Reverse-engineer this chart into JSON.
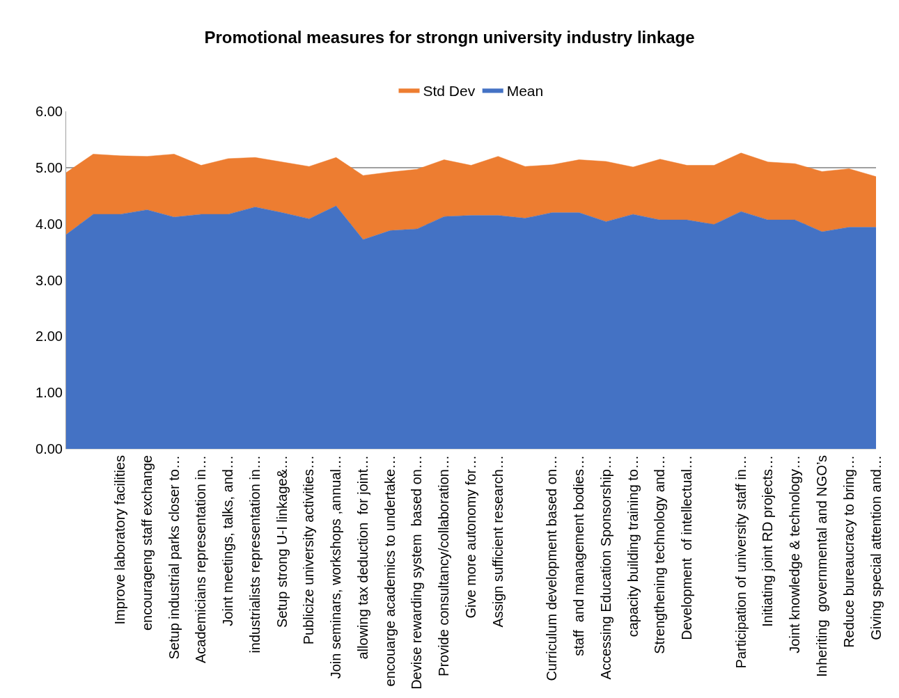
{
  "chart_data": {
    "type": "area",
    "title": "Promotional measures for strongn university industry linkage",
    "categories": [
      null,
      null,
      "Improve laboratory facilities",
      "encourageng staff exchange",
      "Setup industrial parks closer to…",
      "Academicians representation in…",
      "Joint meetings, talks, and…",
      "industrialists representation in…",
      "Setup strong U-I linkage&…",
      "Publicize university activities…",
      "Join seminars, workshops ,annual…",
      "allowing tax deduction  for joint…",
      "encouarge academics to undertake…",
      "Devise rewarding system  based on…",
      "Provide consultancy/collaboration…",
      "Give more autonomy for…",
      "Assign sufficient research…",
      null,
      "Curriculum development based on…",
      "staff  and management bodies…",
      "Accessing Education Sponsorship…",
      "capacity building training to…",
      "Strengthening technology and…",
      "Development  of intellectual…",
      null,
      "Participation of university staff in…",
      "Initiating joint RD projects…",
      "Joint knowledge & technology…",
      "Inheriting  governmental and NGO’s",
      "Reduce bureaucracy to bring…",
      "Giving special attention and…"
    ],
    "stacked": true,
    "series": [
      {
        "name": "Mean",
        "color": "#4472c4",
        "values": [
          3.81,
          4.17,
          4.17,
          4.25,
          4.12,
          4.17,
          4.17,
          4.3,
          4.2,
          4.09,
          4.32,
          3.72,
          3.88,
          3.91,
          4.13,
          4.15,
          4.15,
          4.1,
          4.2,
          4.2,
          4.04,
          4.17,
          4.07,
          4.07,
          3.99,
          4.22,
          4.07,
          4.07,
          3.86,
          3.94,
          3.94
        ]
      },
      {
        "name": "Std Dev",
        "color": "#ed7d31",
        "values": [
          1.1,
          1.07,
          1.04,
          0.95,
          1.12,
          0.87,
          0.99,
          0.88,
          0.9,
          0.93,
          0.86,
          1.14,
          1.04,
          1.06,
          1.01,
          0.89,
          1.05,
          0.92,
          0.85,
          0.94,
          1.07,
          0.84,
          1.08,
          0.97,
          1.05,
          1.04,
          1.03,
          1.0,
          1.07,
          1.04,
          0.9
        ]
      }
    ],
    "ylim": [
      0,
      6
    ],
    "yticks": [
      {
        "value": 0,
        "label": "0.00"
      },
      {
        "value": 1,
        "label": "1.00"
      },
      {
        "value": 2,
        "label": "2.00"
      },
      {
        "value": 3,
        "label": "3.00"
      },
      {
        "value": 4,
        "label": "4.00"
      },
      {
        "value": 5,
        "label": "5.00"
      },
      {
        "value": 6,
        "label": "6.00"
      }
    ],
    "grid": "y",
    "legend": "top"
  }
}
